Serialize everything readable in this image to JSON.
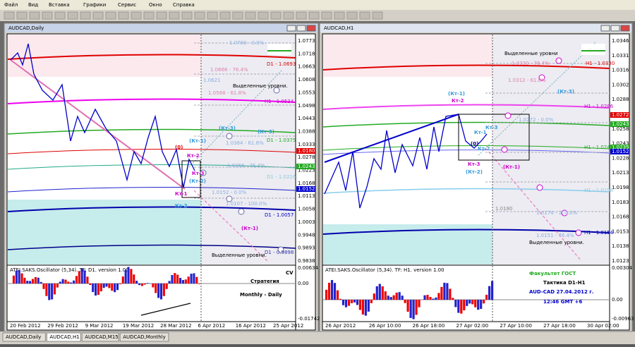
{
  "menu": [
    "Файл",
    "Вид",
    "Вставка",
    "Графики",
    "Сервис",
    "Окно",
    "Справка"
  ],
  "windows": [
    {
      "title": "AUDCAD,Daily",
      "price_labels": [
        "1.0773",
        "1.0718",
        "1.0663",
        "1.0608",
        "1.0553",
        "1.0498",
        "1.0443",
        "1.0388",
        "1.0333",
        "1.0278",
        "1.0223",
        "1.0168",
        "1.0113",
        "1.0058",
        "1.0003",
        "0.9948",
        "0.9893",
        "0.9838"
      ],
      "price_tags": [
        "1.0180",
        "1.0243",
        "1.0152"
      ],
      "date_labels": [
        "20 Feb 2012",
        "29 Feb 2012",
        "9 Mar 2012",
        "19 Mar 2012",
        "28 Mar 2012",
        "6 Apr 2012",
        "16 Apr 2012",
        "25 Apr 2012"
      ],
      "indicator_title": "ATEI.SAKS.Oscillator (5,34). TF: D1. version 1.00",
      "indicator_labels": [
        "0.00634",
        "0.00",
        "-0.01742"
      ],
      "annotations": [
        "1.0780 - 0.0%",
        "D1 - 1.0693",
        "1.0666 - 76.4%",
        "1.0621",
        "1.0568 - 61.8%",
        "Выделенные уровни.",
        "H1 - 1.0534",
        "(Кт-3)",
        "(Кт-3)",
        "(Кт-1)",
        "1.0364 - 61.8%",
        "D1 - 1.0375",
        "(0)",
        "Кт-2",
        "1.0266 - 76.4%",
        "D1 - 1.0216",
        "Кт-3",
        "(Кт-2)",
        "Кт-1",
        "1.0152 - 0.0%",
        "Кт-2",
        "1.0107 - 100.0%",
        "D1 - 1.0057",
        "(Кт-1)",
        "D1 - 0.9898",
        "Выделенные уровни."
      ],
      "indicator_notes": [
        "CV",
        "Стратегия",
        "Monthly - Daily"
      ]
    },
    {
      "title": "AUDCAD,H1",
      "price_labels": [
        "1.0346",
        "1.0331",
        "1.0316",
        "1.0302",
        "1.0288",
        "1.0273",
        "1.0258",
        "1.0243",
        "1.0228",
        "1.0213",
        "1.0198",
        "1.0183",
        "1.0168",
        "1.0153",
        "1.0138",
        "1.0123"
      ],
      "price_tags": [
        "1.0272",
        "1.0243",
        "1.0235",
        "1.0152"
      ],
      "date_labels": [
        "26 Apr 2012",
        "26 Apr 10:00",
        "26 Apr 18:00",
        "27 Apr 02:00",
        "27 Apr 10:00",
        "27 Apr 18:00",
        "30 Apr 02:00"
      ],
      "indicator_title": "ATEI.SAKS.Oscillator (5,34). TF: H1. version 1.00",
      "indicator_labels": [
        "0.00304",
        "0.00",
        "-0.00963"
      ],
      "annotations": [
        "Выделенные уровни",
        "1.0330 - 76.4%",
        "H1 - 1.0330",
        "(Кт-1)",
        "Кт-2",
        "1.0312 - 61.8%",
        "(Кт-3)",
        "H1 - 1.0286",
        "1.0272 - 0.0%",
        "Кт-1",
        "Кт-3",
        "Кт-2",
        "(0)",
        "H1 - 1.0243",
        "Кт-3",
        "(Кт-2)",
        "(Кт-1)",
        "H1 - 1.0198",
        "1.0180",
        "1.0174 - 100.0%",
        "1.0151 - 76.4%",
        "H1 - 1.0154",
        "Выделенные уровни."
      ],
      "indicator_notes": [
        "Факультет ГОСТ",
        "Тактика  D1-H1",
        "AUD-CAD  27.04.2012 г.",
        "12:46  GMT +6"
      ]
    }
  ],
  "tabs": [
    "AUDCAD,Daily",
    "AUDCAD,H1",
    "AUDCAD,M15",
    "AUDCAD,Monthly"
  ]
}
